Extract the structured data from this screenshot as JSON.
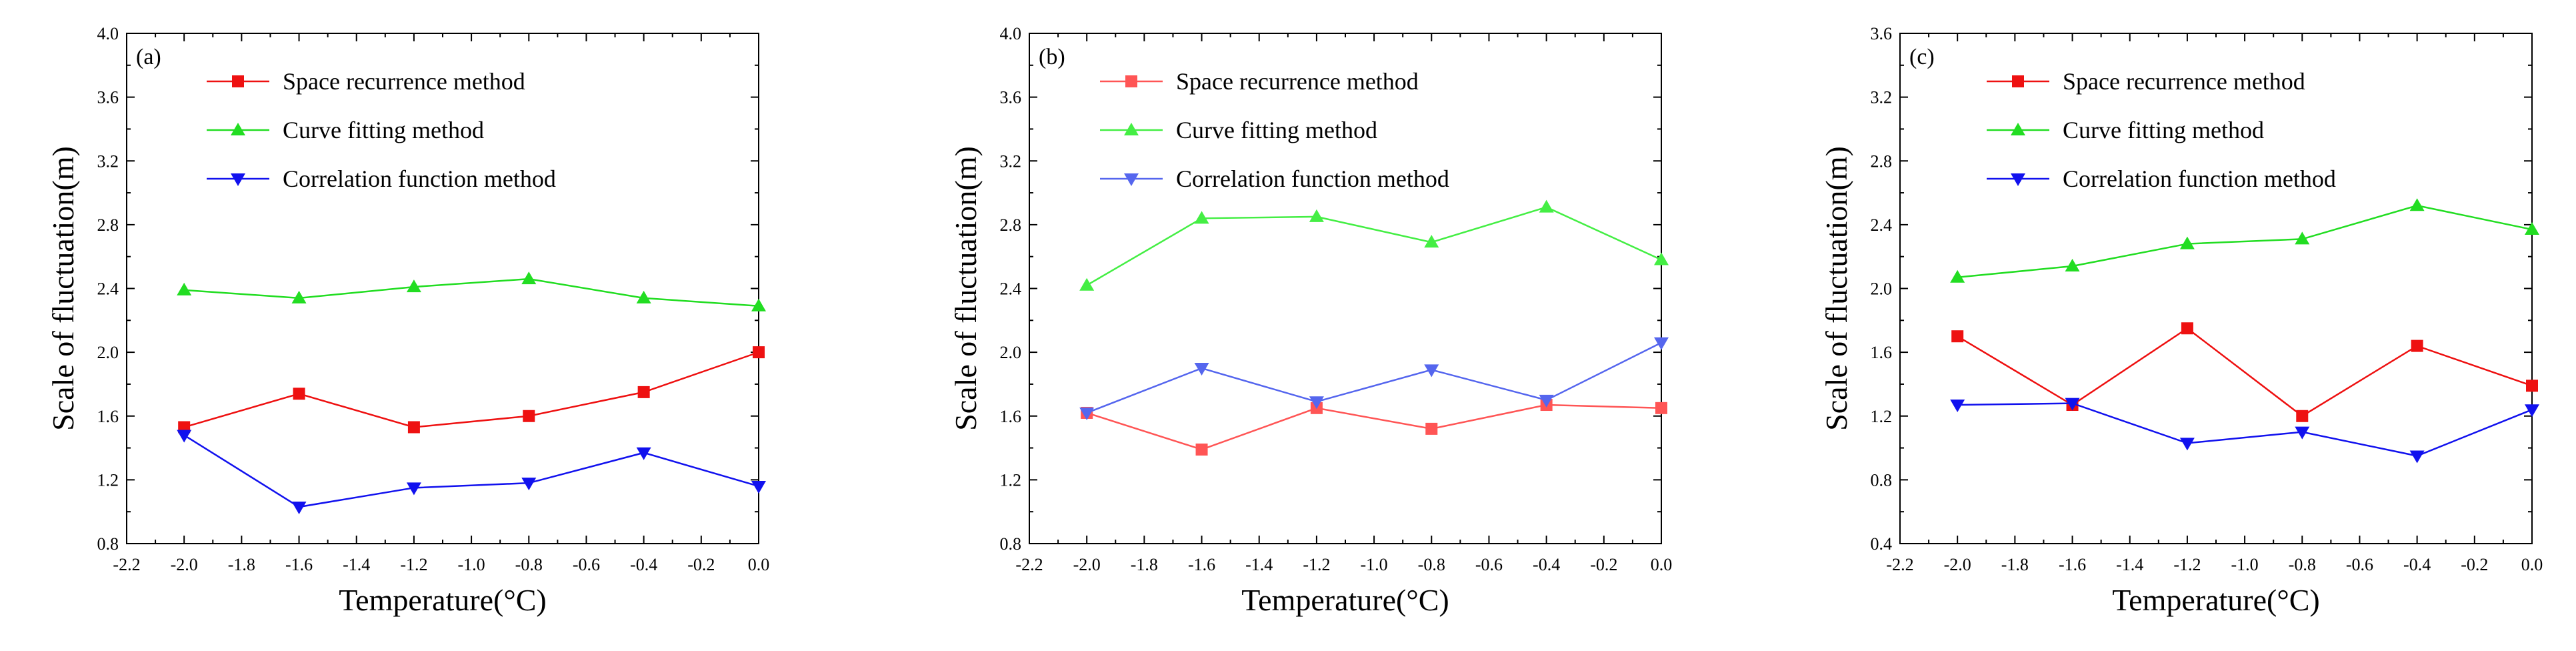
{
  "chart_data": [
    {
      "type": "line",
      "panel_label": "(a)",
      "xlabel": "Temperature(°C)",
      "ylabel": "Scale of fluctuation(m)",
      "xlim": [
        -2.2,
        0.0
      ],
      "ylim": [
        0.8,
        4.0
      ],
      "xticks": [
        -2.2,
        -2.0,
        -1.8,
        -1.6,
        -1.4,
        -1.2,
        -1.0,
        -0.8,
        -0.6,
        -0.4,
        -0.2,
        0.0
      ],
      "xtick_labels": [
        "-2.2",
        "-2.0",
        "-1.8",
        "-1.6",
        "-1.4",
        "-1.2",
        "-1.0",
        "-0.8",
        "-0.6",
        "-0.4",
        "-0.2",
        "0.0"
      ],
      "yticks": [
        0.8,
        1.2,
        1.6,
        2.0,
        2.4,
        2.8,
        3.2,
        3.6,
        4.0
      ],
      "ytick_labels": [
        "0.8",
        "1.2",
        "1.6",
        "2.0",
        "2.4",
        "2.8",
        "3.2",
        "3.6",
        "4.0"
      ],
      "x": [
        -2.0,
        -1.6,
        -1.2,
        -0.8,
        -0.4,
        0.0
      ],
      "legend_position": "top-left",
      "series": [
        {
          "name": "Space recurrence method",
          "color": "#ee1111",
          "marker": "square",
          "values": [
            1.53,
            1.74,
            1.53,
            1.6,
            1.75,
            2.0
          ]
        },
        {
          "name": "Curve fitting method",
          "color": "#22dd22",
          "marker": "triangle-up",
          "values": [
            2.39,
            2.34,
            2.41,
            2.46,
            2.34,
            2.29
          ]
        },
        {
          "name": "Correlation function method",
          "color": "#1111ee",
          "marker": "triangle-down",
          "values": [
            1.48,
            1.03,
            1.15,
            1.18,
            1.37,
            1.16
          ]
        }
      ]
    },
    {
      "type": "line",
      "panel_label": "(b)",
      "xlabel": "Temperature(°C)",
      "ylabel": "Scale of fluctuation(m)",
      "xlim": [
        -2.2,
        0.0
      ],
      "ylim": [
        0.8,
        4.0
      ],
      "xticks": [
        -2.2,
        -2.0,
        -1.8,
        -1.6,
        -1.4,
        -1.2,
        -1.0,
        -0.8,
        -0.6,
        -0.4,
        -0.2,
        0.0
      ],
      "xtick_labels": [
        "-2.2",
        "-2.0",
        "-1.8",
        "-1.6",
        "-1.4",
        "-1.2",
        "-1.0",
        "-0.8",
        "-0.6",
        "-0.4",
        "-0.2",
        "0.0"
      ],
      "yticks": [
        0.8,
        1.2,
        1.6,
        2.0,
        2.4,
        2.8,
        3.2,
        3.6,
        4.0
      ],
      "ytick_labels": [
        "0.8",
        "1.2",
        "1.6",
        "2.0",
        "2.4",
        "2.8",
        "3.2",
        "3.6",
        "4.0"
      ],
      "x": [
        -2.0,
        -1.6,
        -1.2,
        -0.8,
        -0.4,
        0.0
      ],
      "legend_position": "top-left",
      "series": [
        {
          "name": "Space recurrence method",
          "color": "#ff5555",
          "marker": "square",
          "values": [
            1.62,
            1.39,
            1.65,
            1.52,
            1.67,
            1.65
          ]
        },
        {
          "name": "Curve fitting method",
          "color": "#44ee44",
          "marker": "triangle-up",
          "values": [
            2.42,
            2.84,
            2.85,
            2.69,
            2.91,
            2.58
          ]
        },
        {
          "name": "Correlation function method",
          "color": "#5566ee",
          "marker": "triangle-down",
          "values": [
            1.62,
            1.9,
            1.69,
            1.89,
            1.7,
            2.06
          ]
        }
      ]
    },
    {
      "type": "line",
      "panel_label": "(c)",
      "xlabel": "Temperature(°C)",
      "ylabel": "Scale of fluctuation(m)",
      "xlim": [
        -2.2,
        0.0
      ],
      "ylim": [
        0.4,
        3.6
      ],
      "xticks": [
        -2.2,
        -2.0,
        -1.8,
        -1.6,
        -1.4,
        -1.2,
        -1.0,
        -0.8,
        -0.6,
        -0.4,
        -0.2,
        0.0
      ],
      "xtick_labels": [
        "-2.2",
        "-2.0",
        "-1.8",
        "-1.6",
        "-1.4",
        "-1.2",
        "-1.0",
        "-0.8",
        "-0.6",
        "-0.4",
        "-0.2",
        "0.0"
      ],
      "yticks": [
        0.4,
        0.8,
        1.2,
        1.6,
        2.0,
        2.4,
        2.8,
        3.2,
        3.6
      ],
      "ytick_labels": [
        "0.4",
        "0.8",
        "1.2",
        "1.6",
        "2.0",
        "2.4",
        "2.8",
        "3.2",
        "3.6"
      ],
      "x": [
        -2.0,
        -1.6,
        -1.2,
        -0.8,
        -0.4,
        0.0
      ],
      "legend_position": "top-left",
      "series": [
        {
          "name": "Space recurrence method",
          "color": "#ee1111",
          "marker": "square",
          "values": [
            1.7,
            1.27,
            1.75,
            1.2,
            1.64,
            1.39
          ]
        },
        {
          "name": "Curve fitting method",
          "color": "#22dd22",
          "marker": "triangle-up",
          "values": [
            2.07,
            2.14,
            2.28,
            2.31,
            2.52,
            2.37
          ]
        },
        {
          "name": "Correlation function method",
          "color": "#1111ee",
          "marker": "triangle-down",
          "values": [
            1.27,
            1.28,
            1.03,
            1.1,
            0.95,
            1.24
          ]
        }
      ]
    }
  ]
}
